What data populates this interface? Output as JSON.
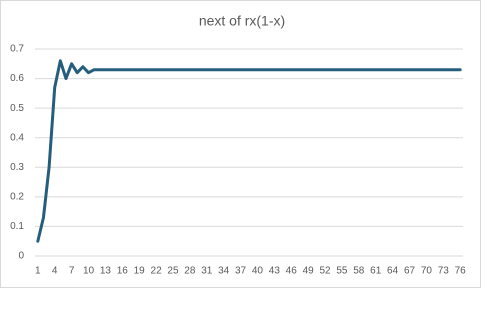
{
  "chart_data": {
    "type": "line",
    "title": "next of rx(1-x)",
    "categories": [
      1,
      null,
      null,
      4,
      null,
      null,
      7,
      null,
      null,
      10,
      null,
      null,
      13,
      null,
      null,
      16,
      null,
      null,
      19,
      null,
      null,
      22,
      null,
      null,
      25,
      null,
      null,
      28,
      null,
      null,
      31,
      null,
      null,
      34,
      null,
      null,
      37,
      null,
      null,
      40,
      null,
      null,
      43,
      null,
      null,
      46,
      null,
      null,
      49,
      null,
      null,
      52,
      null,
      null,
      55,
      null,
      null,
      58,
      null,
      null,
      61,
      null,
      null,
      64,
      null,
      null,
      67,
      null,
      null,
      70,
      null,
      null,
      73,
      null,
      null,
      76
    ],
    "values": [
      0.05,
      0.13,
      0.3,
      0.57,
      0.66,
      0.6,
      0.65,
      0.62,
      0.64,
      0.62,
      0.63,
      0.63,
      0.63,
      0.63,
      0.63,
      0.63,
      0.63,
      0.63,
      0.63,
      0.63,
      0.63,
      0.63,
      0.63,
      0.63,
      0.63,
      0.63,
      0.63,
      0.63,
      0.63,
      0.63,
      0.63,
      0.63,
      0.63,
      0.63,
      0.63,
      0.63,
      0.63,
      0.63,
      0.63,
      0.63,
      0.63,
      0.63,
      0.63,
      0.63,
      0.63,
      0.63,
      0.63,
      0.63,
      0.63,
      0.63,
      0.63,
      0.63,
      0.63,
      0.63,
      0.63,
      0.63,
      0.63,
      0.63,
      0.63,
      0.63,
      0.63,
      0.63,
      0.63,
      0.63,
      0.63,
      0.63,
      0.63,
      0.63,
      0.63,
      0.63,
      0.63,
      0.63,
      0.63,
      0.63,
      0.63,
      0.63
    ],
    "color": "#255e7d",
    "ylim": [
      0,
      0.7
    ],
    "yticks": [
      0,
      0.1,
      0.2,
      0.3,
      0.4,
      0.5,
      0.6,
      0.7
    ],
    "grid": true
  }
}
